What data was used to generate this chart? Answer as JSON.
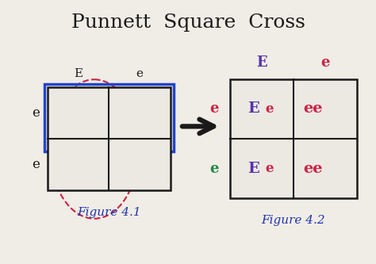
{
  "title": "Punnett  Square  Cross",
  "bg_color": "#f0ede6",
  "title_color": "#1a1a1a",
  "title_fontsize": 18,
  "fig41_label": "Figure 4.1",
  "fig42_label": "Figure 4.2",
  "fig_label_color": "#2233aa",
  "fig_label_fontsize": 11,
  "punnett2_col_E_color": "#5533aa",
  "punnett2_col_e_color": "#cc2244",
  "punnett2_row1_e_color": "#cc2244",
  "punnett2_row2_e_color": "#228844",
  "punnett2_cell_E_color": "#5533aa",
  "punnett2_cell_e_color": "#cc2244",
  "punnett2_cell_ee_color": "#cc2244"
}
